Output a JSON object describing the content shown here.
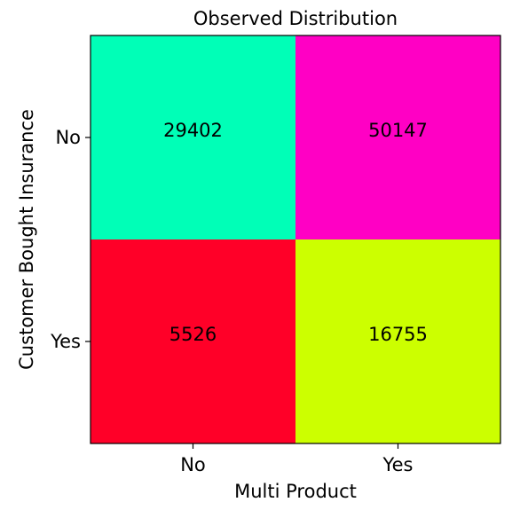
{
  "chart_data": {
    "type": "heatmap",
    "title": "Observed Distribution",
    "xlabel": "Multi Product",
    "ylabel": "Customer Bought Insurance",
    "x_categories": [
      "No",
      "Yes"
    ],
    "y_categories": [
      "No",
      "Yes"
    ],
    "values": [
      [
        29402,
        50147
      ],
      [
        5526,
        16755
      ]
    ],
    "cell_colors": [
      [
        "#00ffb7",
        "#ff00c4"
      ],
      [
        "#ff0028",
        "#ccff00"
      ]
    ],
    "grid": false,
    "legend": "none"
  }
}
